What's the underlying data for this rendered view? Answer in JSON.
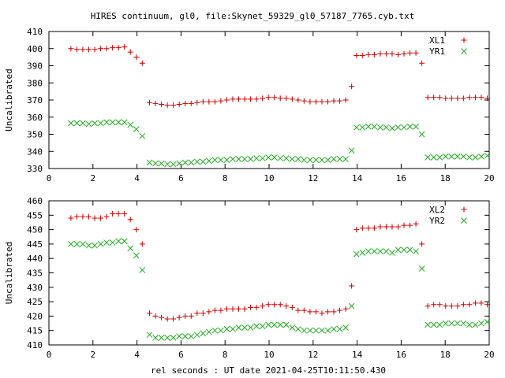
{
  "title": "HIRES continuum, gl0, file:Skynet_59329_gl0_57187_7765.cyb.txt",
  "xlabel": "rel seconds : UT date 2021-04-25T10:11:50.430",
  "chart_data": [
    {
      "type": "scatter",
      "ylabel": "Uncalibrated",
      "xlim": [
        0,
        20
      ],
      "ylim": [
        330,
        410
      ],
      "xticks": [
        "0",
        "2",
        "4",
        "6",
        "8",
        "10",
        "12",
        "14",
        "16",
        "18",
        "20"
      ],
      "yticks": [
        "330",
        "340",
        "350",
        "360",
        "370",
        "380",
        "390",
        "400",
        "410"
      ],
      "legend_position": "top-right",
      "series": [
        {
          "name": "XL1",
          "color": "#cc0000",
          "marker": "plus",
          "x": [
            1.0,
            1.27,
            1.54,
            1.81,
            2.08,
            2.35,
            2.62,
            2.89,
            3.16,
            3.43,
            3.7,
            3.97,
            4.24,
            4.57,
            4.84,
            5.11,
            5.38,
            5.65,
            5.92,
            6.19,
            6.46,
            6.73,
            7.0,
            7.27,
            7.54,
            7.81,
            8.08,
            8.35,
            8.62,
            8.89,
            9.16,
            9.43,
            9.7,
            9.97,
            10.24,
            10.51,
            10.78,
            11.05,
            11.32,
            11.59,
            11.86,
            12.13,
            12.4,
            12.67,
            12.94,
            13.21,
            13.48,
            13.75,
            13.97,
            14.24,
            14.51,
            14.78,
            15.05,
            15.32,
            15.59,
            15.86,
            16.13,
            16.4,
            16.67,
            16.94,
            17.21,
            17.48,
            17.75,
            18.02,
            18.29,
            18.56,
            18.83,
            19.1,
            19.37,
            19.64,
            19.91
          ],
          "y": [
            400,
            399.5,
            399.5,
            399.5,
            399.5,
            400,
            400,
            400.5,
            400.5,
            401,
            398,
            395,
            391.5,
            368.5,
            368,
            367.5,
            367,
            367,
            367.5,
            368,
            368,
            368.5,
            369,
            369,
            369,
            369.5,
            370,
            370.5,
            370.5,
            370.5,
            370.5,
            370.5,
            371,
            371.5,
            371.5,
            371,
            371,
            370.5,
            370,
            369.5,
            369,
            369,
            369,
            369,
            369.5,
            369.5,
            370,
            378,
            396,
            396,
            396.5,
            396.5,
            397,
            397,
            397,
            396.5,
            397,
            397.5,
            397.5,
            391.5,
            371.5,
            371.5,
            371.5,
            371,
            371,
            371,
            371,
            371.5,
            371.5,
            371.5,
            371
          ]
        },
        {
          "name": "YR1",
          "color": "#22aa22",
          "marker": "cross",
          "x": [
            1.0,
            1.27,
            1.54,
            1.81,
            2.08,
            2.35,
            2.62,
            2.89,
            3.16,
            3.43,
            3.7,
            3.97,
            4.24,
            4.57,
            4.84,
            5.11,
            5.38,
            5.65,
            5.92,
            6.19,
            6.46,
            6.73,
            7.0,
            7.27,
            7.54,
            7.81,
            8.08,
            8.35,
            8.62,
            8.89,
            9.16,
            9.43,
            9.7,
            9.97,
            10.24,
            10.51,
            10.78,
            11.05,
            11.32,
            11.59,
            11.86,
            12.13,
            12.4,
            12.67,
            12.94,
            13.21,
            13.48,
            13.75,
            13.97,
            14.24,
            14.51,
            14.78,
            15.05,
            15.32,
            15.59,
            15.86,
            16.13,
            16.4,
            16.67,
            16.94,
            17.21,
            17.48,
            17.75,
            18.02,
            18.29,
            18.56,
            18.83,
            19.1,
            19.37,
            19.64,
            19.91
          ],
          "y": [
            356.5,
            356.5,
            356.5,
            356,
            356.5,
            356.5,
            357,
            357,
            357,
            357,
            355.5,
            353,
            349,
            333.5,
            333,
            333,
            332.5,
            332.5,
            333,
            333.5,
            333.5,
            334,
            334,
            334.5,
            335,
            335,
            335,
            335.5,
            335.5,
            335.5,
            335.5,
            336,
            336,
            336.5,
            336.5,
            336,
            336,
            335.5,
            335.5,
            335,
            335,
            335,
            335,
            335,
            335.5,
            335.5,
            335.5,
            340.5,
            354,
            354,
            354.5,
            354.5,
            354,
            354,
            353.5,
            354,
            354,
            354.5,
            354.5,
            350,
            336.5,
            336.5,
            336.5,
            337,
            337,
            337,
            337,
            336.5,
            336.5,
            337,
            337.5
          ]
        }
      ]
    },
    {
      "type": "scatter",
      "ylabel": "Uncalibrated",
      "xlim": [
        0,
        20
      ],
      "ylim": [
        410,
        460
      ],
      "xticks": [
        "0",
        "2",
        "4",
        "6",
        "8",
        "10",
        "12",
        "14",
        "16",
        "18",
        "20"
      ],
      "yticks": [
        "410",
        "415",
        "420",
        "425",
        "430",
        "435",
        "440",
        "445",
        "450",
        "455",
        "460"
      ],
      "legend_position": "top-right",
      "series": [
        {
          "name": "XL2",
          "color": "#cc0000",
          "marker": "plus",
          "x": [
            1.0,
            1.27,
            1.54,
            1.81,
            2.08,
            2.35,
            2.62,
            2.89,
            3.16,
            3.43,
            3.7,
            3.97,
            4.24,
            4.57,
            4.84,
            5.11,
            5.38,
            5.65,
            5.92,
            6.19,
            6.46,
            6.73,
            7.0,
            7.27,
            7.54,
            7.81,
            8.08,
            8.35,
            8.62,
            8.89,
            9.16,
            9.43,
            9.7,
            9.97,
            10.24,
            10.51,
            10.78,
            11.05,
            11.32,
            11.59,
            11.86,
            12.13,
            12.4,
            12.67,
            12.94,
            13.21,
            13.48,
            13.75,
            13.97,
            14.24,
            14.51,
            14.78,
            15.05,
            15.32,
            15.59,
            15.86,
            16.13,
            16.4,
            16.67,
            16.94,
            17.21,
            17.48,
            17.75,
            18.02,
            18.29,
            18.56,
            18.83,
            19.1,
            19.37,
            19.64,
            19.91
          ],
          "y": [
            454,
            454.5,
            454.5,
            454.5,
            454,
            454,
            454.5,
            455.5,
            455.5,
            455.5,
            453.5,
            450,
            445,
            421,
            420,
            419.5,
            419,
            419,
            419.5,
            420,
            420,
            421,
            421,
            421.5,
            422,
            422,
            422.5,
            422.5,
            422.5,
            422.5,
            423,
            423,
            423.5,
            424,
            424,
            424,
            423.5,
            423,
            422,
            422,
            421.5,
            421.5,
            421,
            421.5,
            421.5,
            422,
            422.5,
            430.5,
            450,
            450.5,
            450.5,
            450.5,
            451,
            451,
            451,
            451,
            451.5,
            451.5,
            452,
            445,
            423.5,
            424,
            424,
            423.5,
            423.5,
            423.5,
            424,
            424,
            424.5,
            424.5,
            424
          ]
        },
        {
          "name": "YR2",
          "color": "#22aa22",
          "marker": "cross",
          "x": [
            1.0,
            1.27,
            1.54,
            1.81,
            2.08,
            2.35,
            2.62,
            2.89,
            3.16,
            3.43,
            3.7,
            3.97,
            4.24,
            4.57,
            4.84,
            5.11,
            5.38,
            5.65,
            5.92,
            6.19,
            6.46,
            6.73,
            7.0,
            7.27,
            7.54,
            7.81,
            8.08,
            8.35,
            8.62,
            8.89,
            9.16,
            9.43,
            9.7,
            9.97,
            10.24,
            10.51,
            10.78,
            11.05,
            11.32,
            11.59,
            11.86,
            12.13,
            12.4,
            12.67,
            12.94,
            13.21,
            13.48,
            13.75,
            13.97,
            14.24,
            14.51,
            14.78,
            15.05,
            15.32,
            15.59,
            15.86,
            16.13,
            16.4,
            16.67,
            16.94,
            17.21,
            17.48,
            17.75,
            18.02,
            18.29,
            18.56,
            18.83,
            19.1,
            19.37,
            19.64,
            19.91
          ],
          "y": [
            445,
            445,
            445,
            444.5,
            444.5,
            445,
            445.5,
            445.5,
            446,
            446,
            443.5,
            441,
            436,
            413.5,
            412.5,
            412.5,
            412.5,
            412.5,
            413,
            413,
            413,
            413.5,
            414,
            414.5,
            415,
            415,
            415.5,
            415.5,
            416,
            416,
            416,
            416.5,
            416.5,
            417,
            417,
            417,
            417,
            416,
            415.5,
            415,
            415,
            415,
            415,
            415,
            415.5,
            415.5,
            416,
            423.5,
            441.5,
            442,
            442.5,
            442.5,
            442.5,
            442.5,
            442,
            443,
            443,
            443,
            442.5,
            436.5,
            417,
            417,
            417,
            417.5,
            417.5,
            417.5,
            417.5,
            417,
            417,
            417.5,
            418
          ]
        }
      ]
    }
  ]
}
